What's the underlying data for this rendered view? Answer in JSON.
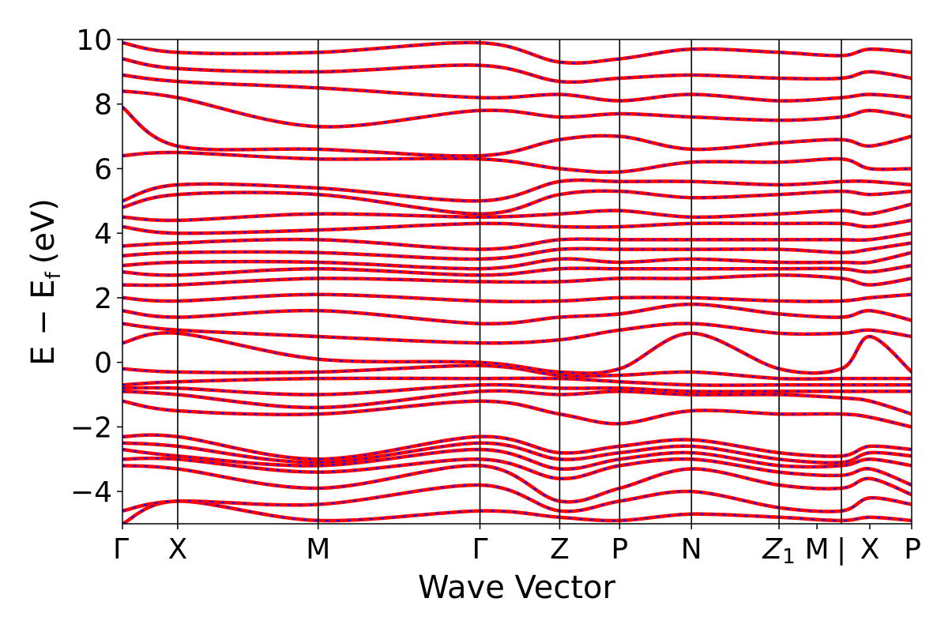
{
  "chart_data": {
    "type": "line",
    "title": "",
    "xlabel": "Wave Vector",
    "ylabel": "E − E",
    "ylabel_subscript": "f",
    "ylabel_unit": "(eV)",
    "ylim": [
      -5,
      10
    ],
    "yticks": [
      -4,
      -2,
      0,
      2,
      4,
      6,
      8,
      10
    ],
    "ytick_labels": [
      "−4",
      "−2",
      "0",
      "2",
      "4",
      "6",
      "8",
      "10"
    ],
    "xlim": [
      0,
      1
    ],
    "kpoints": [
      {
        "label": "Γ",
        "pos": 0.0
      },
      {
        "label": "X",
        "pos": 0.07
      },
      {
        "label": "M",
        "pos": 0.248
      },
      {
        "label": "Γ",
        "pos": 0.453
      },
      {
        "label": "Z",
        "pos": 0.554
      },
      {
        "label": "P",
        "pos": 0.63
      },
      {
        "label": "N",
        "pos": 0.721
      },
      {
        "label": "Z",
        "label_subscript": "1",
        "pos": 0.832
      },
      {
        "label": "M",
        "pos": 0.88
      },
      {
        "label": "|",
        "pos": 0.911
      },
      {
        "label": "X",
        "pos": 0.947
      },
      {
        "label": "P",
        "pos": 1.0
      }
    ],
    "vlines": [
      0.07,
      0.248,
      0.453,
      0.554,
      0.63,
      0.721,
      0.832,
      0.911
    ],
    "grid": false,
    "series_colors": {
      "red": "#ff0000",
      "blue": "#1010ff"
    },
    "bands": [
      [
        -5.0,
        -4.3,
        -4.9,
        -4.6,
        -4.8,
        -4.9,
        -4.7,
        -4.8,
        -4.9,
        -4.8,
        -4.9
      ],
      [
        -4.6,
        -4.3,
        -4.4,
        -3.8,
        -4.6,
        -4.3,
        -4.0,
        -4.5,
        -4.6,
        -4.2,
        -4.4
      ],
      [
        -3.2,
        -3.3,
        -3.9,
        -3.2,
        -4.3,
        -3.9,
        -3.3,
        -3.8,
        -3.9,
        -3.6,
        -4.1
      ],
      [
        -3.0,
        -3.0,
        -3.4,
        -3.0,
        -3.6,
        -3.2,
        -3.0,
        -3.4,
        -3.5,
        -3.3,
        -3.8
      ],
      [
        -2.7,
        -2.9,
        -3.2,
        -2.7,
        -3.3,
        -3.0,
        -2.8,
        -3.2,
        -3.2,
        -3.0,
        -3.2
      ],
      [
        -2.5,
        -2.6,
        -3.1,
        -2.5,
        -3.0,
        -2.8,
        -2.6,
        -3.0,
        -3.1,
        -2.8,
        -2.9
      ],
      [
        -2.3,
        -2.3,
        -3.0,
        -2.3,
        -2.8,
        -2.6,
        -2.4,
        -2.8,
        -2.9,
        -2.6,
        -2.7
      ],
      [
        -1.2,
        -1.5,
        -1.6,
        -1.2,
        -1.6,
        -1.9,
        -1.5,
        -1.6,
        -1.6,
        -1.7,
        -2.0
      ],
      [
        -0.9,
        -1.0,
        -1.4,
        -0.9,
        -1.0,
        -0.9,
        -1.0,
        -1.0,
        -1.1,
        -1.2,
        -1.6
      ],
      [
        -0.8,
        -0.8,
        -1.0,
        -0.7,
        -0.8,
        -0.8,
        -0.9,
        -0.9,
        -0.9,
        -0.9,
        -0.9
      ],
      [
        -0.7,
        -0.6,
        -0.5,
        -0.5,
        -0.5,
        -0.6,
        -0.7,
        -0.7,
        -0.7,
        -0.7,
        -0.7
      ],
      [
        -0.2,
        -0.3,
        -0.3,
        -0.1,
        -0.4,
        -0.4,
        -0.3,
        -0.5,
        -0.5,
        -0.5,
        -0.5
      ],
      [
        0.6,
        0.9,
        0.1,
        0.0,
        -0.3,
        -0.2,
        0.9,
        -0.2,
        -0.2,
        0.8,
        -0.3
      ],
      [
        1.2,
        1.0,
        0.8,
        0.6,
        0.7,
        1.0,
        1.2,
        0.9,
        0.9,
        1.0,
        0.8
      ],
      [
        1.6,
        1.4,
        1.6,
        1.2,
        1.4,
        1.5,
        1.8,
        1.5,
        1.4,
        1.6,
        1.3
      ],
      [
        2.0,
        1.9,
        2.1,
        1.9,
        1.9,
        2.0,
        2.0,
        1.9,
        1.9,
        2.0,
        2.1
      ],
      [
        2.4,
        2.4,
        2.6,
        2.5,
        2.5,
        2.6,
        2.6,
        2.7,
        2.6,
        2.4,
        2.6
      ],
      [
        2.8,
        2.7,
        2.9,
        2.7,
        2.9,
        2.9,
        2.9,
        2.9,
        2.9,
        2.8,
        3.0
      ],
      [
        3.0,
        3.1,
        3.1,
        2.9,
        3.2,
        3.1,
        3.2,
        3.1,
        3.1,
        3.1,
        3.4
      ],
      [
        3.3,
        3.4,
        3.4,
        3.2,
        3.5,
        3.5,
        3.5,
        3.5,
        3.4,
        3.5,
        3.7
      ],
      [
        3.6,
        3.7,
        3.8,
        3.5,
        3.8,
        3.8,
        3.8,
        3.8,
        3.8,
        3.8,
        4.0
      ],
      [
        4.2,
        4.0,
        4.1,
        4.3,
        4.2,
        4.2,
        4.3,
        4.3,
        4.3,
        4.2,
        4.4
      ],
      [
        4.5,
        4.4,
        4.6,
        4.5,
        4.6,
        4.7,
        4.5,
        4.6,
        4.7,
        4.6,
        4.9
      ],
      [
        4.8,
        5.2,
        5.2,
        4.6,
        5.2,
        5.3,
        5.1,
        5.2,
        5.3,
        5.2,
        5.3
      ],
      [
        5.0,
        5.5,
        5.4,
        5.0,
        5.6,
        5.6,
        5.6,
        5.5,
        5.6,
        5.6,
        5.5
      ],
      [
        6.4,
        6.5,
        6.3,
        6.3,
        6.0,
        5.9,
        6.2,
        6.2,
        6.3,
        6.0,
        6.0
      ],
      [
        7.9,
        6.7,
        6.6,
        6.4,
        6.9,
        7.0,
        6.6,
        6.8,
        6.9,
        6.7,
        7.0
      ],
      [
        8.4,
        8.2,
        7.3,
        7.8,
        7.6,
        7.7,
        7.6,
        7.5,
        7.6,
        7.8,
        7.6
      ],
      [
        8.9,
        8.7,
        8.5,
        8.2,
        8.3,
        8.1,
        8.3,
        8.1,
        8.2,
        8.3,
        8.2
      ],
      [
        9.4,
        9.1,
        9.0,
        9.2,
        8.7,
        8.8,
        8.9,
        8.8,
        8.8,
        9.0,
        8.8
      ],
      [
        9.9,
        9.6,
        9.6,
        9.9,
        9.3,
        9.4,
        9.7,
        9.6,
        9.5,
        9.7,
        9.6
      ]
    ]
  }
}
